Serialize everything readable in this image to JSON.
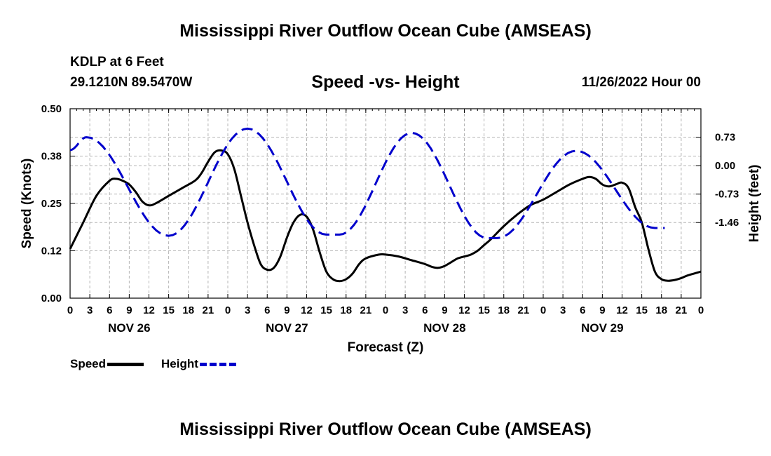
{
  "header": {
    "main_title": "Mississippi River Outflow Ocean Cube (AMSEAS)",
    "station": "KDLP at 6 Feet",
    "coords": "29.1210N  89.5470W",
    "datetime": "11/26/2022 Hour 00",
    "footer_title": "Mississippi River Outflow Ocean Cube (AMSEAS)"
  },
  "chart_data": {
    "type": "line",
    "title": "Speed -vs- Height",
    "xlabel": "Forecast (Z)",
    "ylabel": "Speed (Knots)",
    "y2label": "Height (feet)",
    "x_range_hours": [
      0,
      96
    ],
    "ylim": [
      0,
      0.5
    ],
    "y2lim": [
      -3.4,
      1.46
    ],
    "y_ticks": [
      "0.00",
      "0.12",
      "0.25",
      "0.38",
      "0.50"
    ],
    "y_tick_values": [
      0,
      0.125,
      0.25,
      0.375,
      0.5
    ],
    "y2_ticks": [
      "0.73",
      "0.00",
      "-0.73",
      "-1.46"
    ],
    "y2_tick_values": [
      0.73,
      0,
      -0.73,
      -1.46
    ],
    "x_tick_labels": [
      "0",
      "3",
      "6",
      "9",
      "12",
      "15",
      "18",
      "21",
      "0",
      "3",
      "6",
      "9",
      "12",
      "15",
      "18",
      "21",
      "0",
      "3",
      "6",
      "9",
      "12",
      "15",
      "18",
      "21",
      "0",
      "3",
      "6",
      "9",
      "12",
      "15",
      "18",
      "21",
      "0"
    ],
    "day_labels": [
      {
        "label": "NOV 26",
        "hour": 9
      },
      {
        "label": "NOV 27",
        "hour": 33
      },
      {
        "label": "NOV 28",
        "hour": 57
      },
      {
        "label": "NOV 29",
        "hour": 81
      }
    ],
    "series": [
      {
        "name": "Speed",
        "color": "#000000",
        "axis": "left",
        "x": [
          0,
          2,
          4,
          6,
          7,
          8,
          9,
          10,
          11,
          12,
          13,
          15,
          17,
          19,
          20,
          21,
          22,
          23,
          24,
          25,
          26,
          27,
          28,
          29,
          30,
          31,
          32,
          33,
          34,
          35,
          36,
          37,
          38,
          39,
          40,
          41,
          42,
          43,
          44,
          45,
          47,
          48,
          50,
          52,
          54,
          55,
          56,
          57,
          58,
          59,
          60,
          61,
          62,
          63,
          64,
          66,
          68,
          70,
          72,
          74,
          76,
          78,
          79,
          80,
          81,
          82,
          83,
          84,
          85,
          86,
          87,
          88,
          89,
          90,
          91,
          92,
          93,
          94,
          96
        ],
        "values": [
          0.13,
          0.2,
          0.27,
          0.31,
          0.315,
          0.31,
          0.3,
          0.28,
          0.255,
          0.245,
          0.25,
          0.27,
          0.29,
          0.31,
          0.33,
          0.36,
          0.385,
          0.39,
          0.38,
          0.34,
          0.27,
          0.2,
          0.14,
          0.09,
          0.075,
          0.08,
          0.11,
          0.16,
          0.2,
          0.22,
          0.215,
          0.18,
          0.12,
          0.07,
          0.05,
          0.045,
          0.05,
          0.065,
          0.09,
          0.105,
          0.115,
          0.115,
          0.11,
          0.1,
          0.09,
          0.083,
          0.08,
          0.085,
          0.095,
          0.105,
          0.11,
          0.115,
          0.125,
          0.14,
          0.155,
          0.19,
          0.22,
          0.245,
          0.26,
          0.28,
          0.3,
          0.315,
          0.32,
          0.315,
          0.3,
          0.295,
          0.3,
          0.305,
          0.29,
          0.24,
          0.2,
          0.13,
          0.07,
          0.05,
          0.046,
          0.048,
          0.053,
          0.06,
          0.07
        ]
      },
      {
        "name": "Height",
        "color": "#0000cc",
        "axis": "right",
        "x": [
          0,
          2.5,
          15,
          27,
          39,
          41,
          52,
          63.5,
          65,
          77,
          89,
          90.5
        ],
        "values": [
          0.4,
          0.73,
          -1.8,
          0.95,
          -1.77,
          -1.77,
          0.84,
          -1.86,
          -1.86,
          0.38,
          -1.6,
          -1.6
        ]
      }
    ]
  }
}
